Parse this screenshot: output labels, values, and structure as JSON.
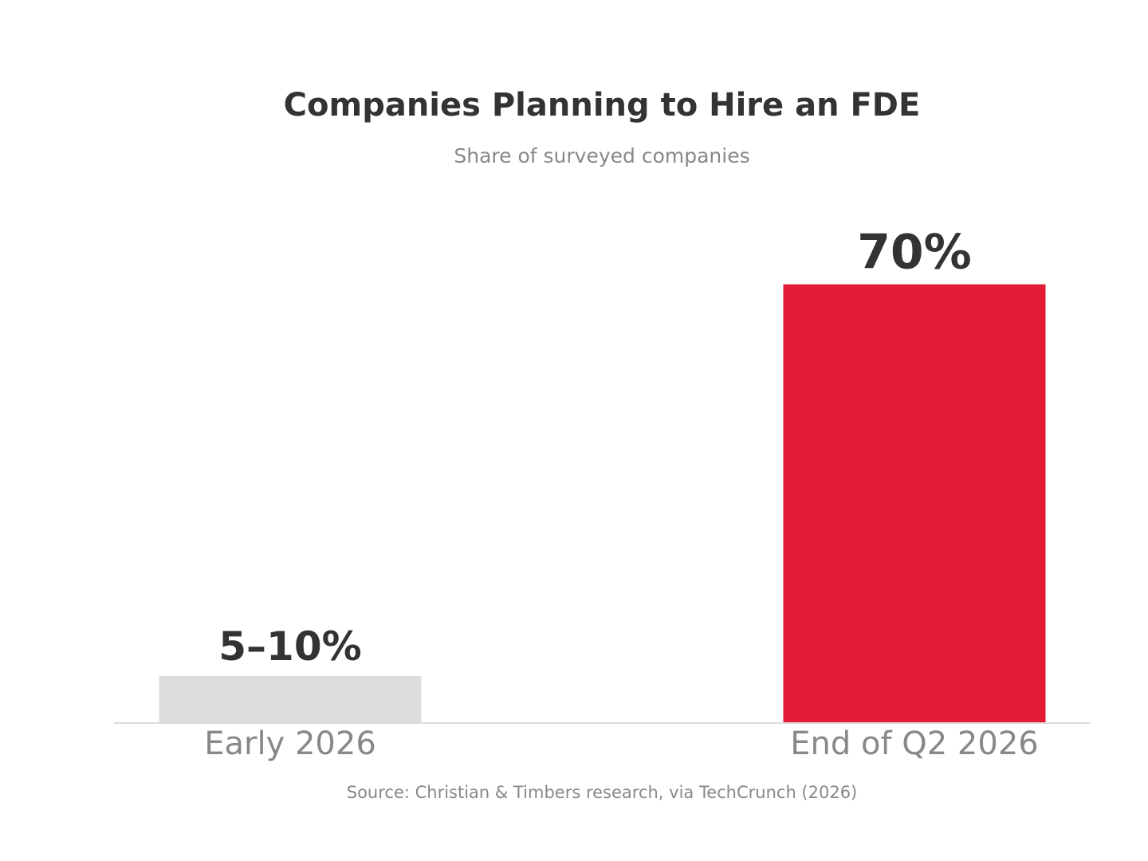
{
  "chart_data": {
    "type": "bar",
    "title": "Companies Planning to Hire an FDE",
    "subtitle": "Share of surveyed companies",
    "categories": [
      "Early 2026",
      "End of Q2 2026"
    ],
    "values": [
      7.5,
      70
    ],
    "value_labels": [
      "5–10%",
      "70%"
    ],
    "bar_colors": [
      "#dddddd",
      "#e31b37"
    ],
    "ylim": [
      0,
      80
    ],
    "xlabel": "",
    "ylabel": "",
    "grid": false,
    "legend": "none",
    "source": "Source: Christian & Timbers research, via TechCrunch (2026)"
  },
  "colors": {
    "text_dark": "#333333",
    "text_muted": "#888888",
    "axis_line": "#dddddd"
  }
}
